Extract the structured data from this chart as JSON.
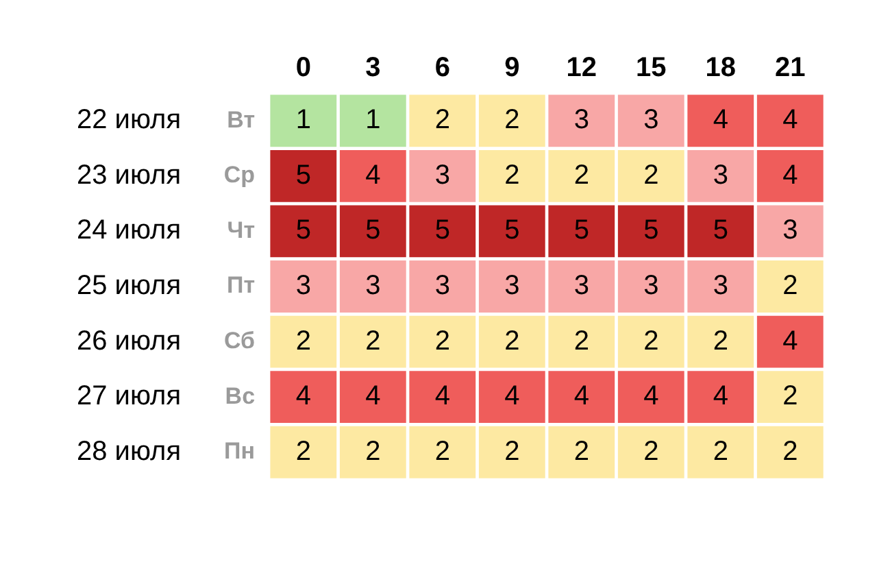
{
  "chart_data": {
    "type": "heatmap",
    "categories": [
      "0",
      "3",
      "6",
      "9",
      "12",
      "15",
      "18",
      "21"
    ],
    "y_categories": [
      "22 июля",
      "23 июля",
      "24 июля",
      "25 июля",
      "26 июля",
      "27 июля",
      "28 июля"
    ],
    "y2_categories": [
      "Вт",
      "Ср",
      "Чт",
      "Пт",
      "Сб",
      "Вс",
      "Пн"
    ],
    "cells": [
      [
        1,
        1,
        2,
        2,
        3,
        3,
        4,
        4
      ],
      [
        5,
        4,
        3,
        2,
        2,
        2,
        3,
        4
      ],
      [
        5,
        5,
        5,
        5,
        5,
        5,
        5,
        3
      ],
      [
        3,
        3,
        3,
        3,
        3,
        3,
        3,
        2
      ],
      [
        2,
        2,
        2,
        2,
        2,
        2,
        2,
        4
      ],
      [
        4,
        4,
        4,
        4,
        4,
        4,
        4,
        2
      ],
      [
        2,
        2,
        2,
        2,
        2,
        2,
        2,
        2
      ]
    ],
    "colors": [
      "#b4e4a0",
      "#fde9a2",
      "#f8a7a6",
      "#ef5d5b",
      "#bf2727"
    ],
    "data_labels": true
  }
}
